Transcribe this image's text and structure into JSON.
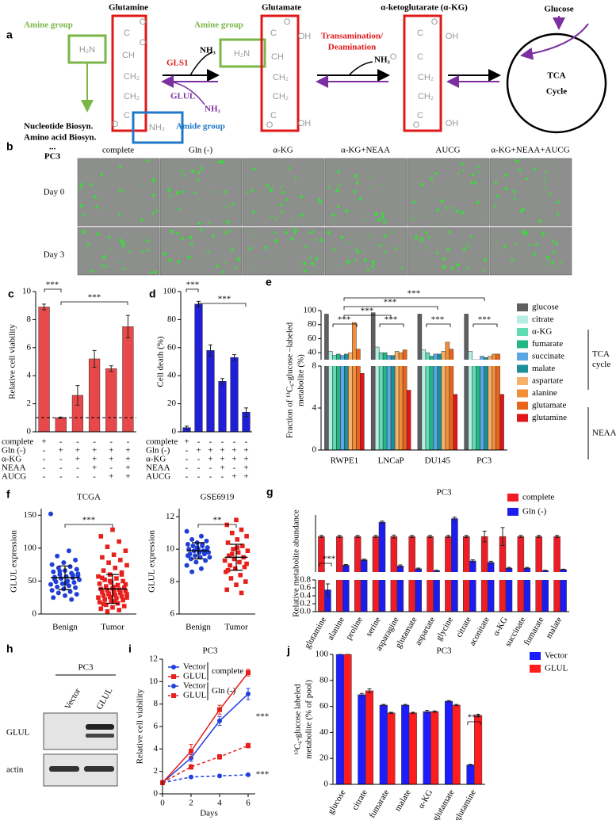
{
  "diagram_a": {
    "letter": "a",
    "glutamine": "Glutamine",
    "glutamate": "Glutamate",
    "akg": "α-ketoglutarate (α-KG)",
    "glucose": "Glucose",
    "amine_group_1": "Amine group",
    "amine_group_2": "Amine group",
    "h2n_1": "H₂N",
    "h2n_2": "H₂N",
    "nh2": "NH₂",
    "amide_group": "Amide group",
    "gls1": "GLS1",
    "nh3_1": "NH₃",
    "glul": "GLUL",
    "nh3_2": "NH₃",
    "transamination": [
      "Transamination/",
      "Deamination"
    ],
    "nh3_3": "NH₃",
    "tca": [
      "TCA",
      "Cycle"
    ],
    "biosyn": [
      "Nucleotide Biosyn.",
      "Amino acid Biosyn.",
      "..."
    ],
    "molecules": {
      "glutamine": [
        "C",
        "O",
        "O",
        "CH",
        "CH₂",
        "CH₂",
        "C",
        "O"
      ],
      "glutamate": [
        "C",
        "O",
        "OH",
        "CH",
        "CH₂",
        "CH₂",
        "C",
        "O",
        "OH"
      ],
      "akg": [
        "C",
        "O",
        "OH",
        "O",
        "C",
        "CH₂",
        "CH₂",
        "C",
        "O",
        "OH"
      ]
    }
  },
  "images_b": {
    "letter": "b",
    "cell_line": "PC3",
    "columns": [
      "complete",
      "Gln (-)",
      "α-KG",
      "α-KG+NEAA",
      "AUCG",
      "α-KG+NEAA+AUCG"
    ],
    "rows": [
      "Day 0",
      "Day 3"
    ]
  },
  "blot_h": {
    "letter": "h",
    "cell_line": "PC3",
    "lanes": [
      "Vector",
      "GLUL"
    ],
    "bands": [
      "GLUL",
      "actin"
    ]
  },
  "chart_data": [
    {
      "type": "bar",
      "panel": "c",
      "ylabel": "Relative cell viability",
      "values": [
        8.9,
        1.0,
        2.6,
        5.2,
        4.5,
        7.5
      ],
      "errors": [
        0.2,
        0.05,
        0.7,
        0.6,
        0.2,
        0.8
      ],
      "color": "#e8484a",
      "ylim": [
        0,
        10
      ],
      "yticks": [
        0,
        2,
        4,
        6,
        8,
        10
      ],
      "reference_line": 1,
      "annotations": [
        "***",
        "***"
      ],
      "treatments": {
        "rows": [
          "complete",
          "Gln (-)",
          "α-KG",
          "NEAA",
          "AUCG"
        ],
        "marks": [
          [
            "+",
            "-",
            "-",
            "-",
            "-",
            "-"
          ],
          [
            "-",
            "+",
            "+",
            "+",
            "+",
            "+"
          ],
          [
            "-",
            "-",
            "+",
            "+",
            "+",
            "+"
          ],
          [
            "-",
            "-",
            "-",
            "+",
            "-",
            "+"
          ],
          [
            "-",
            "-",
            "-",
            "-",
            "+",
            "+"
          ]
        ]
      }
    },
    {
      "type": "bar",
      "panel": "d",
      "ylabel": "Cell death (%)",
      "values": [
        3,
        91,
        58,
        36,
        53,
        14
      ],
      "errors": [
        1,
        2,
        4,
        2,
        2,
        3
      ],
      "color": "#1f1fd8",
      "ylim": [
        0,
        100
      ],
      "yticks": [
        0,
        20,
        40,
        60,
        80,
        100
      ],
      "annotations": [
        "***",
        "***"
      ],
      "treatments": {
        "rows": [
          "complete",
          "Gln (-)",
          "α-KG",
          "NEAA",
          "AUCG"
        ],
        "marks": [
          [
            "+",
            "-",
            "-",
            "-",
            "-",
            "-"
          ],
          [
            "-",
            "+",
            "+",
            "+",
            "+",
            "+"
          ],
          [
            "-",
            "-",
            "+",
            "+",
            "+",
            "+"
          ],
          [
            "-",
            "-",
            "-",
            "+",
            "-",
            "+"
          ],
          [
            "-",
            "-",
            "-",
            "-",
            "+",
            "+"
          ]
        ]
      }
    },
    {
      "type": "bar",
      "panel": "e",
      "ylabel": [
        "Fraction of ¹³C₆-glucose –labeled",
        "metabolite (%)"
      ],
      "categories": [
        "RWPE1",
        "LNCaP",
        "DU145",
        "PC3"
      ],
      "series": [
        {
          "name": "glucose",
          "color": "#5f5f5f",
          "values": [
            95,
            97,
            95,
            95
          ]
        },
        {
          "name": "citrate",
          "color": "#b5efe3",
          "values": [
            42,
            48,
            44,
            42
          ]
        },
        {
          "name": "α-KG",
          "color": "#5fdcb3",
          "values": [
            36,
            40,
            40,
            30
          ]
        },
        {
          "name": "fumarate",
          "color": "#22b585",
          "values": [
            38,
            40,
            35,
            30
          ]
        },
        {
          "name": "succinate",
          "color": "#5aa7e6",
          "values": [
            36,
            36,
            38,
            35
          ]
        },
        {
          "name": "malate",
          "color": "#1c8f98",
          "values": [
            38,
            36,
            38,
            33
          ]
        },
        {
          "name": "aspartate",
          "color": "#f6b26b",
          "values": [
            40,
            42,
            42,
            35
          ]
        },
        {
          "name": "alanine",
          "color": "#f28d3a",
          "values": [
            83,
            40,
            55,
            38
          ]
        },
        {
          "name": "glutamate",
          "color": "#e8651c",
          "values": [
            45,
            44,
            45,
            38
          ]
        },
        {
          "name": "glutamine",
          "color": "#e0161a",
          "values": [
            7.3,
            5.7,
            5.3,
            5.3
          ]
        }
      ],
      "ylim": [
        0,
        100
      ],
      "ybreak": [
        8,
        30
      ],
      "yticks": [
        0,
        4,
        8,
        40,
        60,
        80,
        100
      ],
      "legend_groups": [
        [
          "TCA",
          "cycle"
        ],
        [
          "NEAA"
        ]
      ],
      "annotations": [
        "***",
        "***",
        "***",
        "***",
        "***",
        "***",
        "***"
      ]
    },
    {
      "type": "scatter",
      "panel": "f",
      "title": "TCGA",
      "ylabel": "GLUL expression",
      "categories": [
        "Benign",
        "Tumor"
      ],
      "colors": [
        "#1f3fd6",
        "#e8201c"
      ],
      "markers": [
        "circle",
        "square"
      ],
      "points": [
        [
          152,
          96,
          88,
          82,
          78,
          75,
          72,
          70,
          68,
          66,
          64,
          62,
          60,
          58,
          57,
          56,
          55,
          54,
          52,
          50,
          49,
          48,
          46,
          45,
          43,
          41,
          40,
          38,
          36,
          34,
          32,
          30,
          28,
          25,
          22,
          65,
          61,
          47,
          53,
          59
        ],
        [
          128,
          118,
          110,
          102,
          96,
          90,
          86,
          82,
          78,
          74,
          70,
          66,
          63,
          60,
          57,
          54,
          52,
          50,
          48,
          46,
          44,
          42,
          40,
          39,
          38,
          37,
          36,
          35,
          34,
          33,
          32,
          31,
          30,
          29,
          28,
          27,
          26,
          25,
          24,
          22,
          21,
          20,
          18,
          16,
          14,
          12,
          10,
          8,
          6,
          4,
          45,
          41,
          55,
          33,
          30,
          25,
          19,
          15,
          60,
          50
        ]
      ],
      "means": [
        55,
        38
      ],
      "sds": [
        18,
        22
      ],
      "ylim": [
        0,
        160
      ],
      "yticks": [
        0,
        50,
        100,
        150
      ],
      "annotations": [
        "***"
      ]
    },
    {
      "type": "scatter",
      "title": "GSE6919",
      "ylabel": "GLUL expression",
      "categories": [
        "Benign",
        "Tumor"
      ],
      "colors": [
        "#1f3fd6",
        "#e8201c"
      ],
      "markers": [
        "circle",
        "square"
      ],
      "points": [
        [
          11.1,
          10.8,
          10.6,
          10.5,
          10.4,
          10.3,
          10.2,
          10.2,
          10.1,
          10.0,
          10.0,
          9.9,
          9.9,
          9.8,
          9.8,
          9.7,
          9.7,
          9.6,
          9.5,
          9.5,
          9.4,
          9.3,
          9.2,
          9.0,
          8.8,
          8.6,
          9.9,
          10.1,
          9.6,
          10.3
        ],
        [
          11.8,
          11.5,
          11.2,
          11.0,
          10.8,
          10.6,
          10.4,
          10.2,
          10.0,
          9.9,
          9.8,
          9.6,
          9.5,
          9.4,
          9.3,
          9.2,
          9.0,
          8.9,
          8.8,
          8.6,
          8.4,
          8.2,
          8.0,
          7.8,
          7.5,
          7.3,
          9.7,
          9.1,
          10.1,
          8.7
        ]
      ],
      "means": [
        9.9,
        9.5
      ],
      "sds": [
        0.5,
        0.8
      ],
      "ylim": [
        6,
        12.5
      ],
      "yticks": [
        6,
        8,
        10,
        12
      ],
      "annotations": [
        "**"
      ]
    },
    {
      "type": "bar",
      "panel": "g",
      "title": "PC3",
      "ylabel": "Relative metabolite abundance",
      "categories": [
        "glutamine",
        "alanine",
        "proline",
        "serine",
        "asparagine",
        "glutamate",
        "aspartate",
        "glycine",
        "citrate",
        "aconitate",
        "α-KG",
        "succinate",
        "fumarate",
        "malate"
      ],
      "series": [
        {
          "name": "complete",
          "color": "#ee1c24",
          "values": [
            100,
            100,
            100,
            100,
            100,
            100,
            100,
            100,
            100,
            100,
            100,
            100,
            100,
            100
          ],
          "errors": [
            3,
            3,
            3,
            3,
            4,
            3,
            3,
            3,
            3,
            15,
            25,
            3,
            3,
            3
          ]
        },
        {
          "name": "Gln (-)",
          "color": "#1c1cee",
          "values": [
            0.55,
            20,
            35,
            140,
            18,
            10,
            5,
            150,
            32,
            28,
            12,
            12,
            5,
            8
          ],
          "errors": [
            0.15,
            2,
            2,
            3,
            3,
            2,
            1,
            4,
            3,
            3,
            2,
            2,
            1,
            1
          ]
        }
      ],
      "ylim": [
        0,
        160
      ],
      "ybreak": [
        0.8,
        1
      ],
      "yticks": [
        {
          "value": 0,
          "label": "0.0"
        },
        0.2,
        0.4,
        0.6,
        0.8
      ],
      "annotations": [
        "***"
      ]
    },
    {
      "type": "line",
      "panel": "i",
      "title": "PC3",
      "ylabel": "Relative cell viability",
      "xlabel": "Days",
      "x": [
        0,
        2,
        4,
        6
      ],
      "series": [
        {
          "name": "Vector",
          "color": "#1f3fe0",
          "dashed": false,
          "marker": "circle",
          "values": [
            1,
            3.2,
            6.5,
            8.9
          ],
          "errors": [
            0,
            0.3,
            0.4,
            0.5
          ]
        },
        {
          "name": "GLUL",
          "color": "#e8201c",
          "dashed": false,
          "marker": "square",
          "values": [
            1,
            3.8,
            7.5,
            10.8
          ],
          "errors": [
            0,
            0.6,
            0.4,
            0.3
          ]
        },
        {
          "name": "Vector",
          "color": "#1f3fe0",
          "dashed": true,
          "marker": "circle",
          "values": [
            1,
            1.5,
            1.6,
            1.7
          ],
          "errors": [
            0,
            0.1,
            0.1,
            0.1
          ]
        },
        {
          "name": "GLUL",
          "color": "#e8201c",
          "dashed": true,
          "marker": "square",
          "values": [
            1,
            2.4,
            3.3,
            4.3
          ],
          "errors": [
            0,
            0.2,
            0.2,
            0.2
          ]
        }
      ],
      "xlim": [
        0,
        6.5
      ],
      "xticks": [
        0,
        2,
        4,
        6
      ],
      "ylim": [
        0,
        12
      ],
      "yticks": [
        0,
        2,
        4,
        6,
        8,
        10,
        12
      ],
      "legend_groups": [
        "complete",
        "Gln (-)"
      ],
      "annotations": [
        "***",
        "***"
      ]
    },
    {
      "type": "bar",
      "panel": "j",
      "title": "PC3",
      "ylabel": [
        "¹³C₆-glucose labeled",
        "metabolite (% of pool)"
      ],
      "categories": [
        "glucose",
        "citrate",
        "fumarate",
        "malate",
        "α-KG",
        "glutamate",
        "glutamine"
      ],
      "series": [
        {
          "name": "Vector",
          "color": "#1c1cff",
          "values": [
            100,
            69,
            61,
            61,
            56,
            64,
            15
          ],
          "errors": [
            0,
            1,
            0.5,
            0.5,
            1,
            0.5,
            0.5
          ]
        },
        {
          "name": "GLUL",
          "color": "#ff1c1c",
          "values": [
            100,
            72,
            55,
            55,
            56,
            61,
            53
          ],
          "errors": [
            0,
            1.5,
            0.5,
            0.5,
            0.5,
            0.5,
            1
          ]
        }
      ],
      "ylim": [
        0,
        100
      ],
      "yticks": [
        0,
        20,
        40,
        60,
        80,
        100
      ],
      "annotations": [
        "***"
      ]
    }
  ]
}
